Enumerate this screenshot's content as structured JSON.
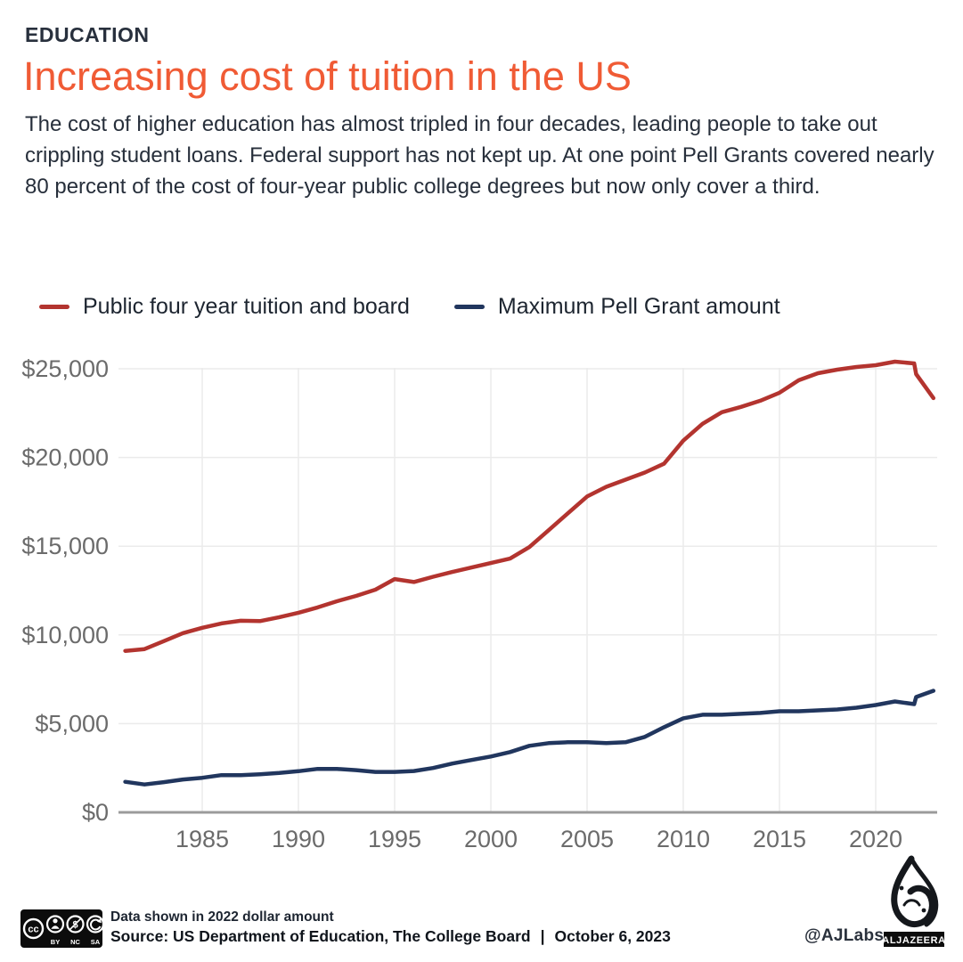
{
  "header": {
    "kicker": "EDUCATION",
    "title": "Increasing cost of tuition in the US",
    "description": "The cost of higher education has almost tripled in four decades, leading people to take out crippling student loans. Federal support has not kept up. At one point Pell Grants covered nearly 80 percent of the cost of four-year public college degrees but now only cover a third.",
    "kicker_color": "#28303d",
    "title_color": "#f05b35",
    "text_color": "#272f3b"
  },
  "chart_data": {
    "type": "line",
    "title": "Increasing cost of tuition in the US",
    "unit_note": "Data shown in 2022 dollar amount",
    "grid": true,
    "legend_position": "top",
    "x_axis": {
      "min": 1981,
      "max": 2023,
      "ticks": [
        1985,
        1990,
        1995,
        2000,
        2005,
        2010,
        2015,
        2020
      ]
    },
    "y_axis": {
      "min": 0,
      "max": 25000,
      "ticks": [
        {
          "value": 25000,
          "label": "$25,000"
        },
        {
          "value": 20000,
          "label": "$20,000"
        },
        {
          "value": 15000,
          "label": "$15,000"
        },
        {
          "value": 10000,
          "label": "$10,000"
        },
        {
          "value": 5000,
          "label": "$5,000"
        },
        {
          "value": 0,
          "label": "$0"
        }
      ]
    },
    "colors": {
      "grid": "#ebebeb",
      "axis": "#9b9b9b",
      "tick_text": "#6b6b6b"
    },
    "series": [
      {
        "name": "Public four year tuition and board",
        "color": "#b3342f",
        "points": [
          [
            1981,
            9100
          ],
          [
            1982,
            9200
          ],
          [
            1983,
            9650
          ],
          [
            1984,
            10100
          ],
          [
            1985,
            10400
          ],
          [
            1986,
            10650
          ],
          [
            1987,
            10800
          ],
          [
            1988,
            10780
          ],
          [
            1989,
            11000
          ],
          [
            1990,
            11250
          ],
          [
            1991,
            11550
          ],
          [
            1992,
            11900
          ],
          [
            1993,
            12200
          ],
          [
            1994,
            12550
          ],
          [
            1995,
            13150
          ],
          [
            1996,
            12980
          ],
          [
            1997,
            13280
          ],
          [
            1998,
            13550
          ],
          [
            1999,
            13800
          ],
          [
            2000,
            14050
          ],
          [
            2001,
            14300
          ],
          [
            2002,
            14950
          ],
          [
            2003,
            15900
          ],
          [
            2004,
            16850
          ],
          [
            2005,
            17800
          ],
          [
            2006,
            18350
          ],
          [
            2007,
            18750
          ],
          [
            2008,
            19150
          ],
          [
            2009,
            19650
          ],
          [
            2010,
            20950
          ],
          [
            2011,
            21900
          ],
          [
            2012,
            22550
          ],
          [
            2013,
            22850
          ],
          [
            2014,
            23200
          ],
          [
            2015,
            23650
          ],
          [
            2016,
            24350
          ],
          [
            2017,
            24750
          ],
          [
            2018,
            24950
          ],
          [
            2019,
            25100
          ],
          [
            2020,
            25200
          ],
          [
            2021,
            25400
          ],
          [
            2022,
            25300
          ],
          [
            2022.1,
            24700
          ],
          [
            2023,
            23350
          ]
        ]
      },
      {
        "name": "Maximum Pell Grant amount",
        "color": "#21365e",
        "points": [
          [
            1981,
            1720
          ],
          [
            1982,
            1570
          ],
          [
            1983,
            1700
          ],
          [
            1984,
            1850
          ],
          [
            1985,
            1950
          ],
          [
            1986,
            2100
          ],
          [
            1987,
            2100
          ],
          [
            1988,
            2150
          ],
          [
            1989,
            2220
          ],
          [
            1990,
            2320
          ],
          [
            1991,
            2450
          ],
          [
            1992,
            2450
          ],
          [
            1993,
            2380
          ],
          [
            1994,
            2280
          ],
          [
            1995,
            2280
          ],
          [
            1996,
            2330
          ],
          [
            1997,
            2500
          ],
          [
            1998,
            2750
          ],
          [
            1999,
            2950
          ],
          [
            2000,
            3150
          ],
          [
            2001,
            3400
          ],
          [
            2002,
            3750
          ],
          [
            2003,
            3900
          ],
          [
            2004,
            3950
          ],
          [
            2005,
            3950
          ],
          [
            2006,
            3900
          ],
          [
            2007,
            3950
          ],
          [
            2008,
            4250
          ],
          [
            2009,
            4800
          ],
          [
            2010,
            5300
          ],
          [
            2011,
            5500
          ],
          [
            2012,
            5500
          ],
          [
            2013,
            5550
          ],
          [
            2014,
            5600
          ],
          [
            2015,
            5700
          ],
          [
            2016,
            5700
          ],
          [
            2017,
            5750
          ],
          [
            2018,
            5800
          ],
          [
            2019,
            5900
          ],
          [
            2020,
            6050
          ],
          [
            2021,
            6250
          ],
          [
            2022,
            6100
          ],
          [
            2022.1,
            6500
          ],
          [
            2023,
            6850
          ]
        ]
      }
    ]
  },
  "footer": {
    "note": "Data shown in 2022 dollar amount",
    "source": "Source: US Department of Education, The College Board",
    "separator": "|",
    "date": "October 6, 2023",
    "credit": "@AJLabs",
    "logo_text": "ALJAZEERA",
    "license": {
      "cc": "CC",
      "by": "BY",
      "nc": "NC",
      "sa": "SA"
    }
  }
}
